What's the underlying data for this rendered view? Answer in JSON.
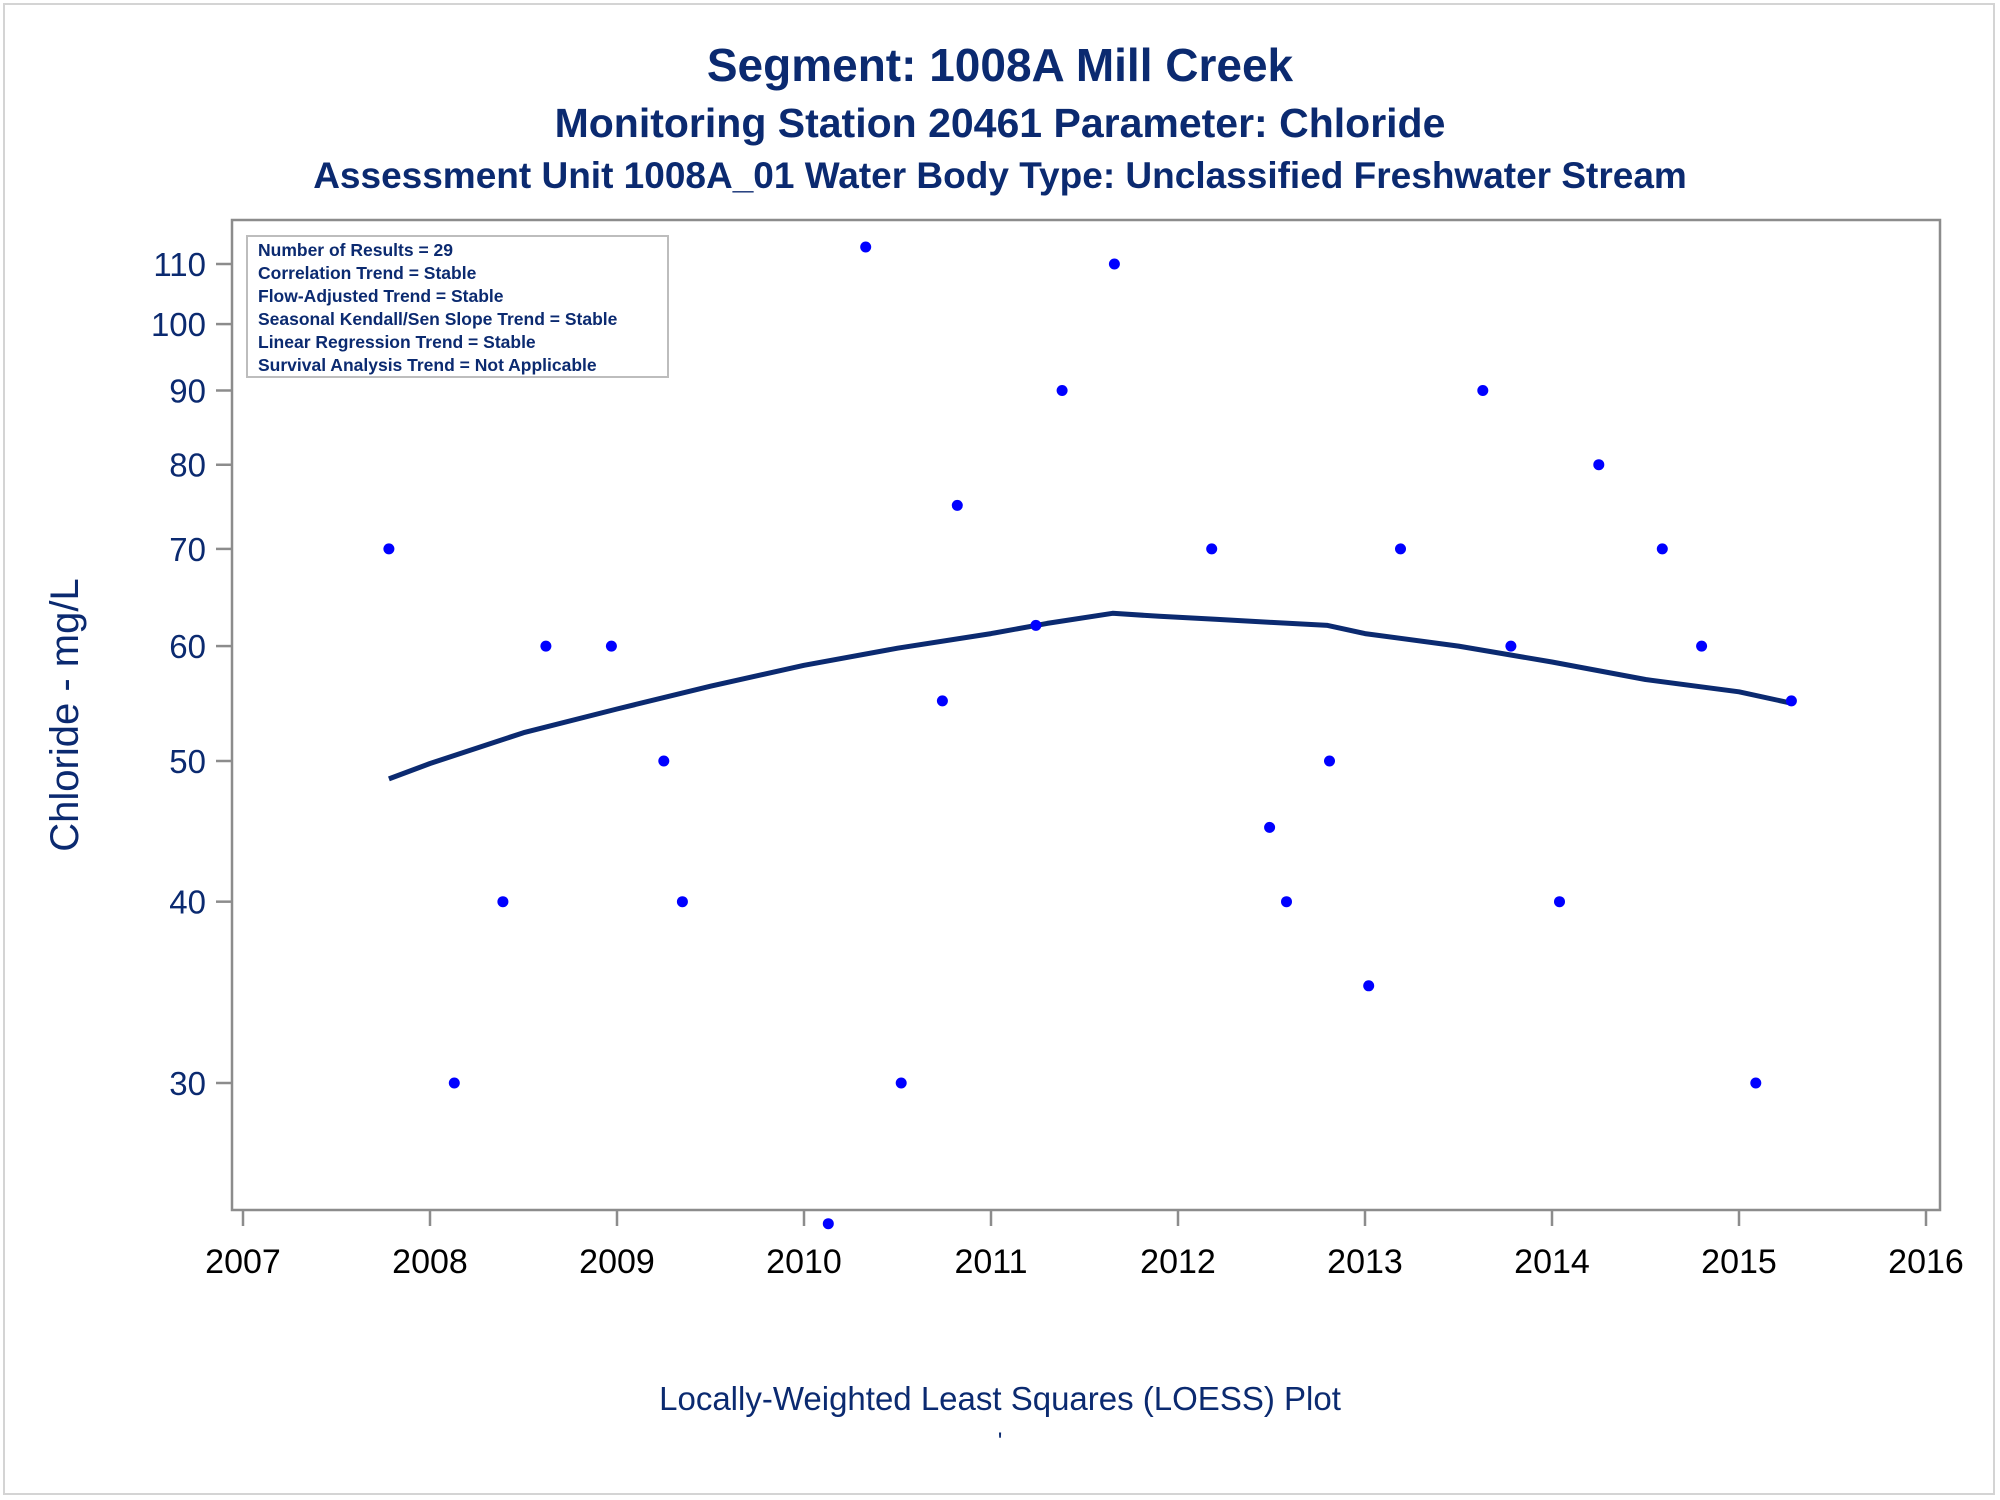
{
  "titles": {
    "line1": "Segment: 1008A  Mill Creek",
    "line2": "Monitoring Station 20461 Parameter: Chloride",
    "line3": "Assessment Unit 1008A_01   Water Body Type: Unclassified Freshwater Stream"
  },
  "footnotes": {
    "line1": "Locally-Weighted Least Squares (LOESS) Plot",
    "line2": "'"
  },
  "stats_box": {
    "lines": [
      "Number of Results = 29",
      "Correlation Trend = Stable",
      "Flow-Adjusted Trend = Stable",
      "Seasonal Kendall/Sen Slope Trend = Stable",
      "Linear Regression Trend = Stable",
      "Survival Analysis Trend = Not Applicable"
    ]
  },
  "colors": {
    "text": "#0b2a70",
    "points": "#0000ff",
    "loess_line": "#0b2a70",
    "axis": "#8c8c8c"
  },
  "chart_data": {
    "type": "scatter",
    "title": "Segment: 1008A  Mill Creek",
    "xlabel": "",
    "ylabel": "Chloride - mg/L",
    "yscale": "log",
    "xlim": [
      2007,
      2016
    ],
    "ylim": [
      24,
      116
    ],
    "x_ticks": [
      2007,
      2008,
      2009,
      2010,
      2011,
      2012,
      2013,
      2014,
      2015,
      2016
    ],
    "y_ticks": [
      30,
      40,
      50,
      60,
      70,
      80,
      90,
      100,
      110
    ],
    "grid": false,
    "series": [
      {
        "kind": "points",
        "x": [
          2007.78,
          2008.13,
          2008.39,
          2008.62,
          2008.97,
          2009.25,
          2009.35,
          2010.13,
          2010.33,
          2010.52,
          2010.74,
          2010.82,
          2011.24,
          2011.38,
          2011.66,
          2012.18,
          2012.49,
          2012.58,
          2012.81,
          2013.02,
          2013.19,
          2013.63,
          2013.78,
          2014.04,
          2014.25,
          2014.59,
          2014.8,
          2015.09,
          2015.28
        ],
        "y": [
          70,
          30,
          40,
          60,
          60,
          50,
          40,
          24,
          113,
          30,
          55,
          75,
          62,
          90,
          110,
          70,
          45,
          40,
          50,
          35,
          70,
          90,
          60,
          40,
          80,
          70,
          60,
          30,
          55
        ]
      },
      {
        "kind": "loess",
        "x": [
          2007.78,
          2008.0,
          2008.5,
          2009.0,
          2009.5,
          2010.0,
          2010.5,
          2011.0,
          2011.3,
          2011.65,
          2011.9,
          2012.2,
          2012.5,
          2012.8,
          2013.0,
          2013.5,
          2014.0,
          2014.5,
          2015.0,
          2015.28
        ],
        "y": [
          48.6,
          49.8,
          52.3,
          54.3,
          56.3,
          58.2,
          59.8,
          61.2,
          62.2,
          63.2,
          62.9,
          62.6,
          62.3,
          62.0,
          61.2,
          60.0,
          58.5,
          56.9,
          55.8,
          54.8
        ]
      }
    ]
  }
}
